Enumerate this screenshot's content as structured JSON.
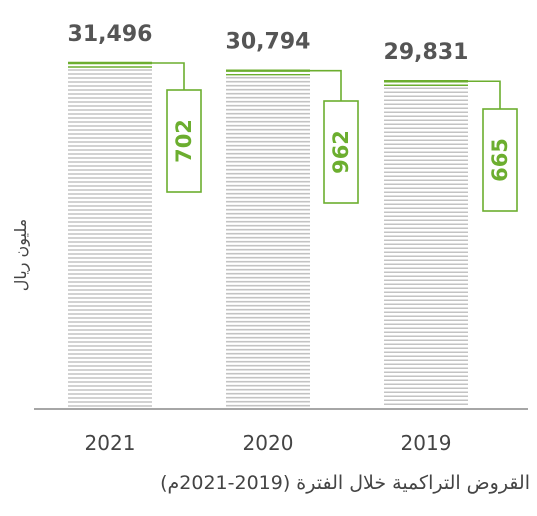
{
  "chart_data": {
    "type": "bar",
    "categories": [
      "2021",
      "2020",
      "2019"
    ],
    "series": [
      {
        "values": [
          31496,
          30794,
          29831
        ]
      },
      {
        "values": [
          702,
          962,
          665
        ]
      }
    ],
    "ylabel": "مليون ريال",
    "caption": "القروض التراكمية خلال الفترة (2019-2021م)",
    "colors": {
      "bar_stripe": "#c3c3c3",
      "accent": "#6cae2f",
      "value": "#555555",
      "axis": "#888888"
    },
    "grid": false,
    "legend": "none"
  }
}
